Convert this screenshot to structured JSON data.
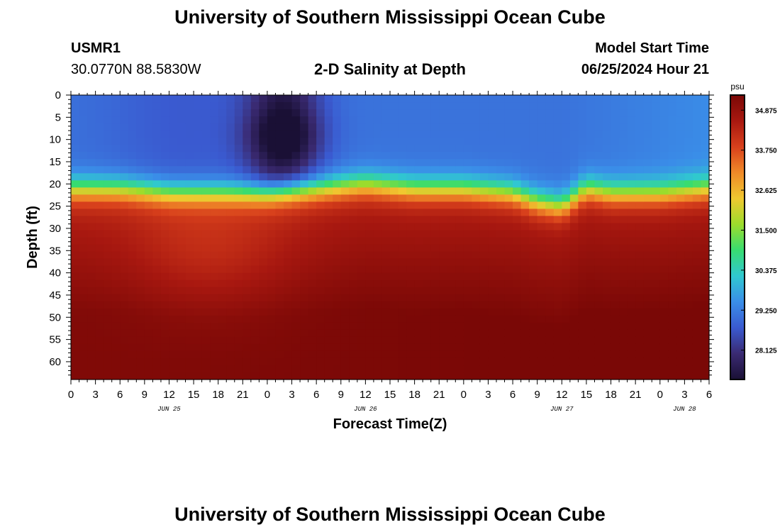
{
  "page": {
    "title": "University of Southern Mississippi Ocean Cube",
    "station_id": "USMR1",
    "coordinates": "30.0770N  88.5830W",
    "plot_title": "2-D Salinity at Depth",
    "model_start_label": "Model Start Time",
    "model_start_value": "06/25/2024 Hour 21",
    "footer_title": "University of Southern Mississippi Ocean Cube"
  },
  "colors": {
    "ramp": [
      "#1a1035",
      "#3a2a72",
      "#3a5ad0",
      "#3a8ee8",
      "#30c8d0",
      "#38dc70",
      "#9cdc2c",
      "#f0c830",
      "#f08a28",
      "#d8401c",
      "#a81810",
      "#7a0806"
    ]
  },
  "chart_data": {
    "type": "heatmap",
    "title": "2-D Salinity at Depth",
    "xlabel": "Forecast Time(Z)",
    "ylabel": "Depth (ft)",
    "x_ticks": [
      "0",
      "3",
      "6",
      "9",
      "12",
      "15",
      "18",
      "21",
      "0",
      "3",
      "6",
      "9",
      "12",
      "15",
      "18",
      "21",
      "0",
      "3",
      "6",
      "9",
      "12",
      "15",
      "18",
      "21",
      "0",
      "3",
      "6"
    ],
    "x_hours": [
      0,
      3,
      6,
      9,
      12,
      15,
      18,
      21,
      24,
      27,
      30,
      33,
      36,
      39,
      42,
      45,
      48,
      51,
      54,
      57,
      60,
      63,
      66,
      69,
      72,
      75,
      78
    ],
    "date_labels": [
      {
        "text": "JUN 25",
        "hour": 12
      },
      {
        "text": "JUN 26",
        "hour": 36
      },
      {
        "text": "JUN 27",
        "hour": 60
      },
      {
        "text": "JUN 28",
        "hour": 75
      }
    ],
    "y_ticks": [
      0,
      5,
      10,
      15,
      20,
      25,
      30,
      35,
      40,
      45,
      50,
      55,
      60
    ],
    "xlim": [
      0,
      78
    ],
    "ylim": [
      0,
      64
    ],
    "colorbar": {
      "unit": "psu",
      "range": [
        27.3,
        35.3
      ],
      "ticks": [
        "34.875",
        "33.750",
        "32.625",
        "31.500",
        "30.375",
        "29.250",
        "28.125"
      ]
    },
    "profile": {
      "description": "Upper-layer fresh water (~28-29 psu) over saline bottom water (~34-35 psu); halocline depth (ft) by forecast hour",
      "halocline_hours": [
        0,
        6,
        12,
        18,
        24,
        30,
        36,
        42,
        48,
        54,
        57,
        60,
        63,
        66,
        72,
        78
      ],
      "halocline_depth_ft": [
        21,
        21,
        22,
        22,
        22,
        21,
        20,
        21,
        21,
        22,
        24,
        25,
        21,
        22,
        22,
        21
      ]
    }
  }
}
